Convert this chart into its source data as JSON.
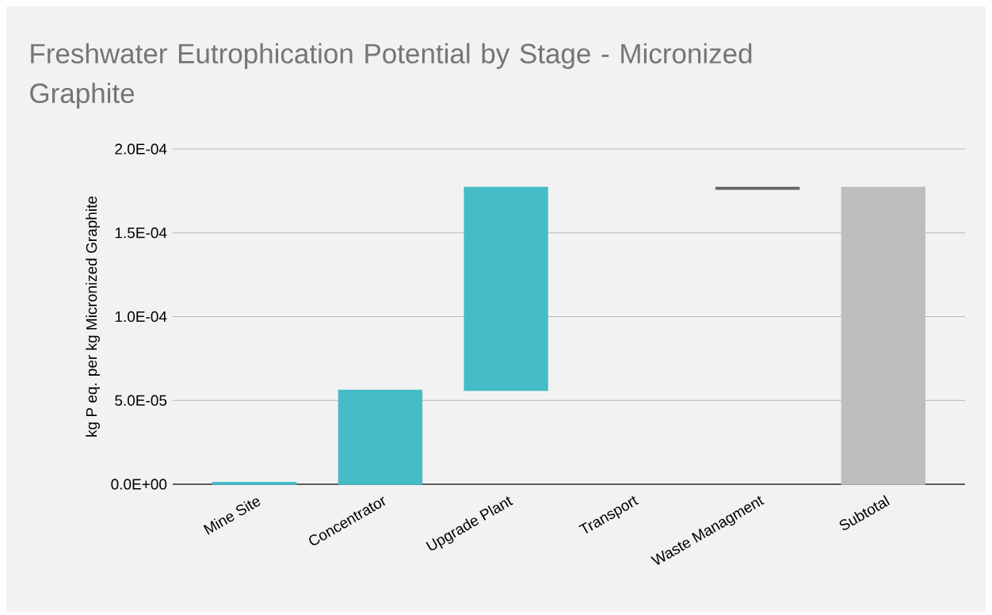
{
  "chart_data": {
    "type": "bar",
    "title": "Freshwater Eutrophication Potential by Stage - Micronized Graphite",
    "ylabel": "kg P eq. per kg Micronized Graphite",
    "categories": [
      "Mine Site",
      "Concentrator",
      "Upgrade Plant",
      "Transport",
      "Waste Managment",
      "Subtotal"
    ],
    "values": [
      1e-06,
      5.6e-05,
      0.000121,
      null,
      1e-06,
      0.000177
    ],
    "base": [
      null,
      0,
      5.6e-05,
      null,
      0.000176,
      0
    ],
    "colors": [
      "#46bcc7",
      "#46bcc7",
      "#46bcc7",
      "#46bcc7",
      "#666666",
      "#bdbdbd"
    ],
    "ylim": [
      0,
      0.0002
    ],
    "yticks": [
      {
        "value": 0,
        "label": "0.0E+00"
      },
      {
        "value": 5e-05,
        "label": "5.0E-05"
      },
      {
        "value": 0.0001,
        "label": "1.0E-04"
      },
      {
        "value": 0.00015,
        "label": "1.5E-04"
      },
      {
        "value": 0.0002,
        "label": "2.0E-04"
      }
    ],
    "grid": "y"
  }
}
